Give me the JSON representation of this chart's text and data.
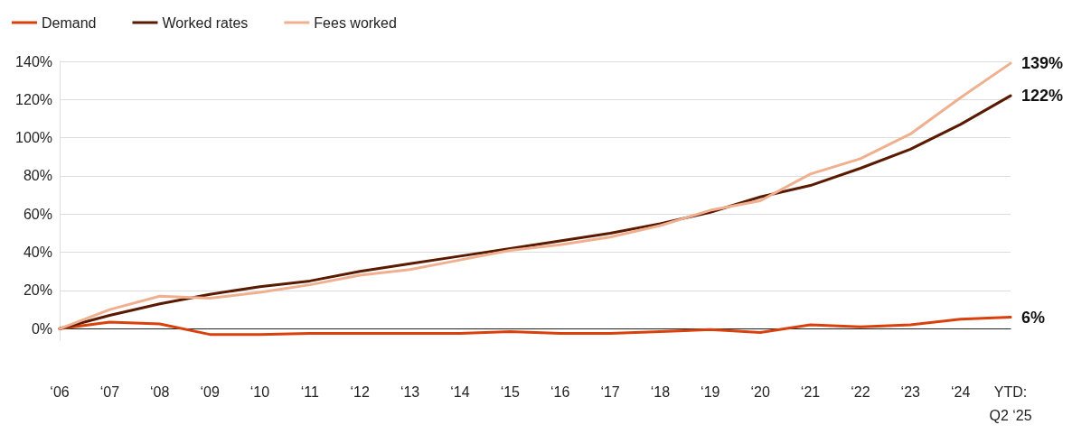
{
  "chart_data": {
    "type": "line",
    "categories": [
      "‘06",
      "‘07",
      "‘08",
      "‘09",
      "‘10",
      "‘11",
      "‘12",
      "‘13",
      "‘14",
      "‘15",
      "‘16",
      "‘17",
      "‘18",
      "‘19",
      "‘20",
      "‘21",
      "‘22",
      "‘23",
      "‘24",
      "YTD:\nQ2 ‘25"
    ],
    "series": [
      {
        "name": "Demand",
        "color": "#d9400b",
        "values": [
          0,
          3.5,
          2.5,
          -3,
          -3,
          -2.5,
          -2.5,
          -2.5,
          -2.5,
          -1.5,
          -2.5,
          -2.5,
          -1.5,
          -0.5,
          -2,
          2,
          1,
          2,
          5,
          6
        ],
        "value_labels": [
          null,
          null,
          null,
          null,
          null,
          null,
          null,
          null,
          null,
          null,
          null,
          null,
          null,
          null,
          null,
          null,
          null,
          null,
          null,
          "6%"
        ]
      },
      {
        "name": "Worked rates",
        "color": "#5a1a00",
        "values": [
          0,
          7,
          13,
          18,
          22,
          25,
          30,
          34,
          38,
          42,
          46,
          50,
          55,
          61,
          69,
          75,
          84,
          94,
          107,
          122
        ],
        "value_labels": [
          null,
          null,
          null,
          null,
          null,
          null,
          null,
          null,
          null,
          null,
          null,
          null,
          null,
          null,
          null,
          null,
          null,
          null,
          null,
          "122%"
        ]
      },
      {
        "name": "Fees worked",
        "color": "#f0b090",
        "values": [
          0,
          10,
          17,
          16,
          19,
          23,
          28,
          31,
          36,
          41,
          44,
          48,
          54,
          62,
          67,
          81,
          89,
          102,
          121,
          139
        ],
        "value_labels": [
          null,
          null,
          null,
          null,
          null,
          null,
          null,
          null,
          null,
          null,
          null,
          null,
          null,
          null,
          null,
          null,
          null,
          null,
          null,
          "139%"
        ]
      }
    ],
    "ylim": [
      -6,
      140
    ],
    "yticks": [
      {
        "value": 0,
        "label": "0%"
      },
      {
        "value": 20,
        "label": "20%"
      },
      {
        "value": 40,
        "label": "40%"
      },
      {
        "value": 60,
        "label": "60%"
      },
      {
        "value": 80,
        "label": "80%"
      },
      {
        "value": 100,
        "label": "100%"
      },
      {
        "value": 120,
        "label": "120%"
      },
      {
        "value": 140,
        "label": "140%"
      }
    ],
    "grid": "y",
    "legend": "top left",
    "marker": "none",
    "line_style": "solid"
  }
}
